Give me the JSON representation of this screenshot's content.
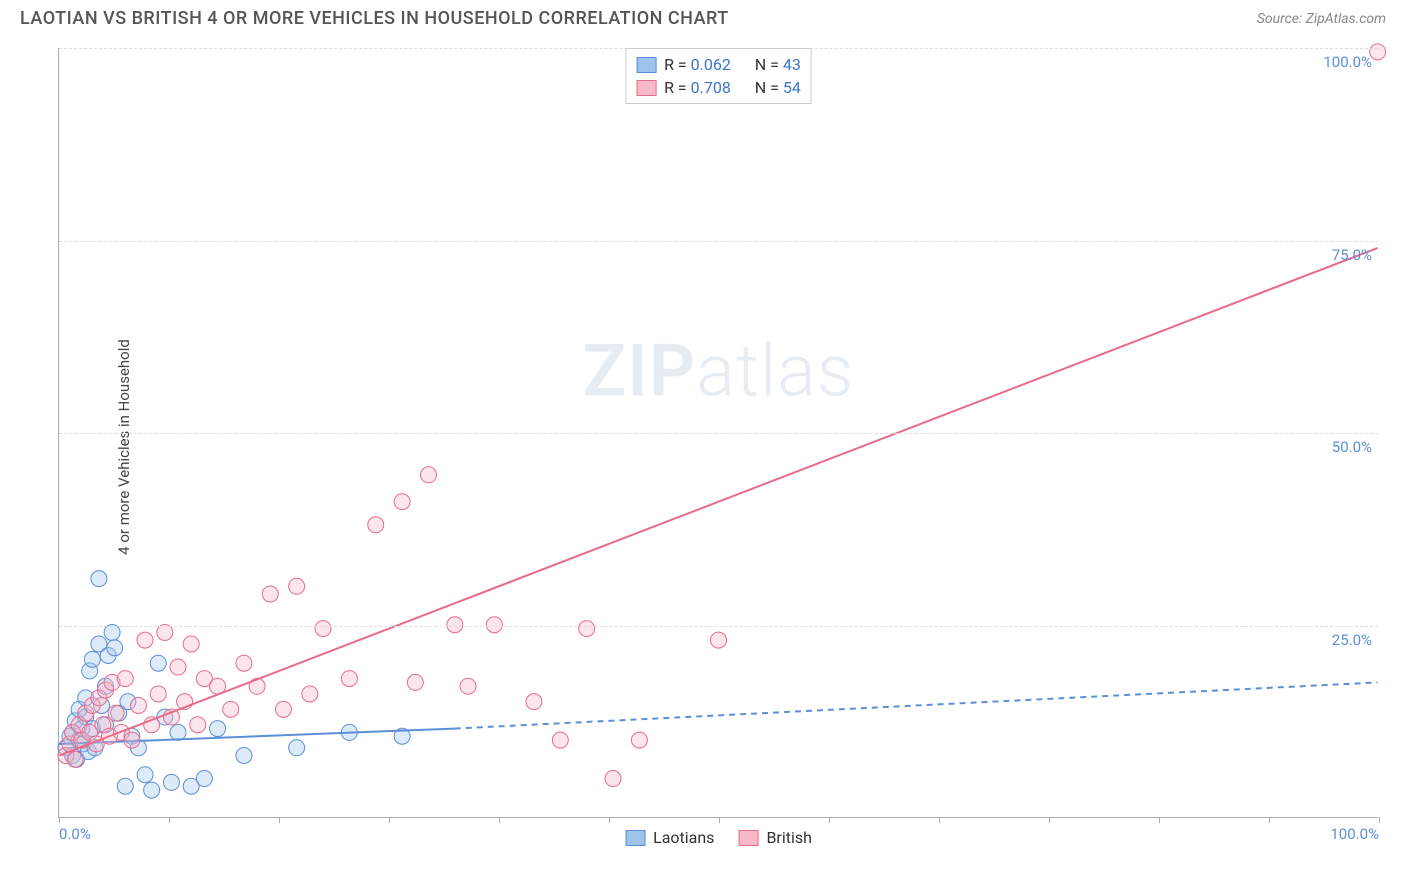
{
  "title": "LAOTIAN VS BRITISH 4 OR MORE VEHICLES IN HOUSEHOLD CORRELATION CHART",
  "source_label": "Source:",
  "source_value": "ZipAtlas.com",
  "ylabel": "4 or more Vehicles in Household",
  "watermark_bold": "ZIP",
  "watermark_light": "atlas",
  "chart": {
    "type": "scatter-correlation",
    "background_color": "#ffffff",
    "grid_color": "#dddddd",
    "axis_color": "#aaaaaa",
    "xlim": [
      0,
      100
    ],
    "ylim": [
      0,
      100
    ],
    "xticks": [
      0,
      8.33,
      16.67,
      25,
      33.33,
      41.67,
      50,
      58.33,
      66.67,
      75,
      83.33,
      91.67,
      100
    ],
    "xtick_labels": {
      "0": "0.0%",
      "100": "100.0%"
    },
    "yticks": [
      25,
      50,
      75,
      100
    ],
    "ytick_labels": {
      "25": "25.0%",
      "50": "50.0%",
      "75": "75.0%",
      "100": "100.0%"
    },
    "tick_label_color": "#5b8fd6",
    "tick_label_fontsize": 15,
    "marker_radius": 8,
    "marker_opacity": 0.35,
    "line_width": 2,
    "series": [
      {
        "name": "Laotians",
        "fill": "#9dc3eb",
        "stroke": "#5b8fd6",
        "R": "0.062",
        "N": "43",
        "trend": {
          "x1": 0,
          "y1": 9.5,
          "x2": 30,
          "y2": 11.5,
          "dash_x2": 100,
          "dash_y2": 17.5
        },
        "points": [
          [
            0.5,
            9
          ],
          [
            0.8,
            10.5
          ],
          [
            1,
            8
          ],
          [
            1,
            11
          ],
          [
            1.2,
            12.5
          ],
          [
            1.3,
            7.5
          ],
          [
            1.5,
            14
          ],
          [
            1.5,
            10
          ],
          [
            1.7,
            11.5
          ],
          [
            1.8,
            9.5
          ],
          [
            2,
            13
          ],
          [
            2,
            15.5
          ],
          [
            2.2,
            8.5
          ],
          [
            2.3,
            19
          ],
          [
            2.5,
            11.5
          ],
          [
            2.5,
            20.5
          ],
          [
            2.7,
            9
          ],
          [
            3,
            31
          ],
          [
            3,
            22.5
          ],
          [
            3.2,
            14.5
          ],
          [
            3.5,
            12
          ],
          [
            3.5,
            17
          ],
          [
            3.7,
            21
          ],
          [
            4,
            24
          ],
          [
            4.2,
            22
          ],
          [
            4.5,
            13.5
          ],
          [
            5,
            4
          ],
          [
            5.2,
            15
          ],
          [
            5.5,
            10.5
          ],
          [
            6,
            9
          ],
          [
            6.5,
            5.5
          ],
          [
            7,
            3.5
          ],
          [
            7.5,
            20
          ],
          [
            8,
            13
          ],
          [
            8.5,
            4.5
          ],
          [
            9,
            11
          ],
          [
            10,
            4
          ],
          [
            11,
            5
          ],
          [
            12,
            11.5
          ],
          [
            14,
            8
          ],
          [
            18,
            9
          ],
          [
            22,
            11
          ],
          [
            26,
            10.5
          ]
        ]
      },
      {
        "name": "British",
        "fill": "#f7b8c7",
        "stroke": "#e86b8a",
        "R": "0.708",
        "N": "54",
        "trend": {
          "x1": 0,
          "y1": 8,
          "x2": 100,
          "y2": 74
        },
        "points": [
          [
            0.5,
            8
          ],
          [
            0.8,
            9.5
          ],
          [
            1,
            11
          ],
          [
            1.2,
            7.5
          ],
          [
            1.5,
            12
          ],
          [
            1.7,
            10
          ],
          [
            2,
            13.5
          ],
          [
            2.3,
            11
          ],
          [
            2.5,
            14.5
          ],
          [
            2.8,
            9.5
          ],
          [
            3,
            15.5
          ],
          [
            3.3,
            12
          ],
          [
            3.5,
            16.5
          ],
          [
            3.8,
            10.5
          ],
          [
            4,
            17.5
          ],
          [
            4.3,
            13.5
          ],
          [
            4.7,
            11
          ],
          [
            5,
            18
          ],
          [
            5.5,
            10
          ],
          [
            6,
            14.5
          ],
          [
            6.5,
            23
          ],
          [
            7,
            12
          ],
          [
            7.5,
            16
          ],
          [
            8,
            24
          ],
          [
            8.5,
            13
          ],
          [
            9,
            19.5
          ],
          [
            9.5,
            15
          ],
          [
            10,
            22.5
          ],
          [
            10.5,
            12
          ],
          [
            11,
            18
          ],
          [
            12,
            17
          ],
          [
            13,
            14
          ],
          [
            14,
            20
          ],
          [
            15,
            17
          ],
          [
            16,
            29
          ],
          [
            17,
            14
          ],
          [
            18,
            30
          ],
          [
            19,
            16
          ],
          [
            20,
            24.5
          ],
          [
            22,
            18
          ],
          [
            24,
            38
          ],
          [
            26,
            41
          ],
          [
            27,
            17.5
          ],
          [
            28,
            44.5
          ],
          [
            30,
            25
          ],
          [
            31,
            17
          ],
          [
            33,
            25
          ],
          [
            36,
            15
          ],
          [
            38,
            10
          ],
          [
            40,
            24.5
          ],
          [
            42,
            5
          ],
          [
            44,
            10
          ],
          [
            50,
            23
          ],
          [
            100,
            99.5
          ]
        ]
      }
    ]
  },
  "legend_top_label_R": "R =",
  "legend_top_label_N": "N ="
}
